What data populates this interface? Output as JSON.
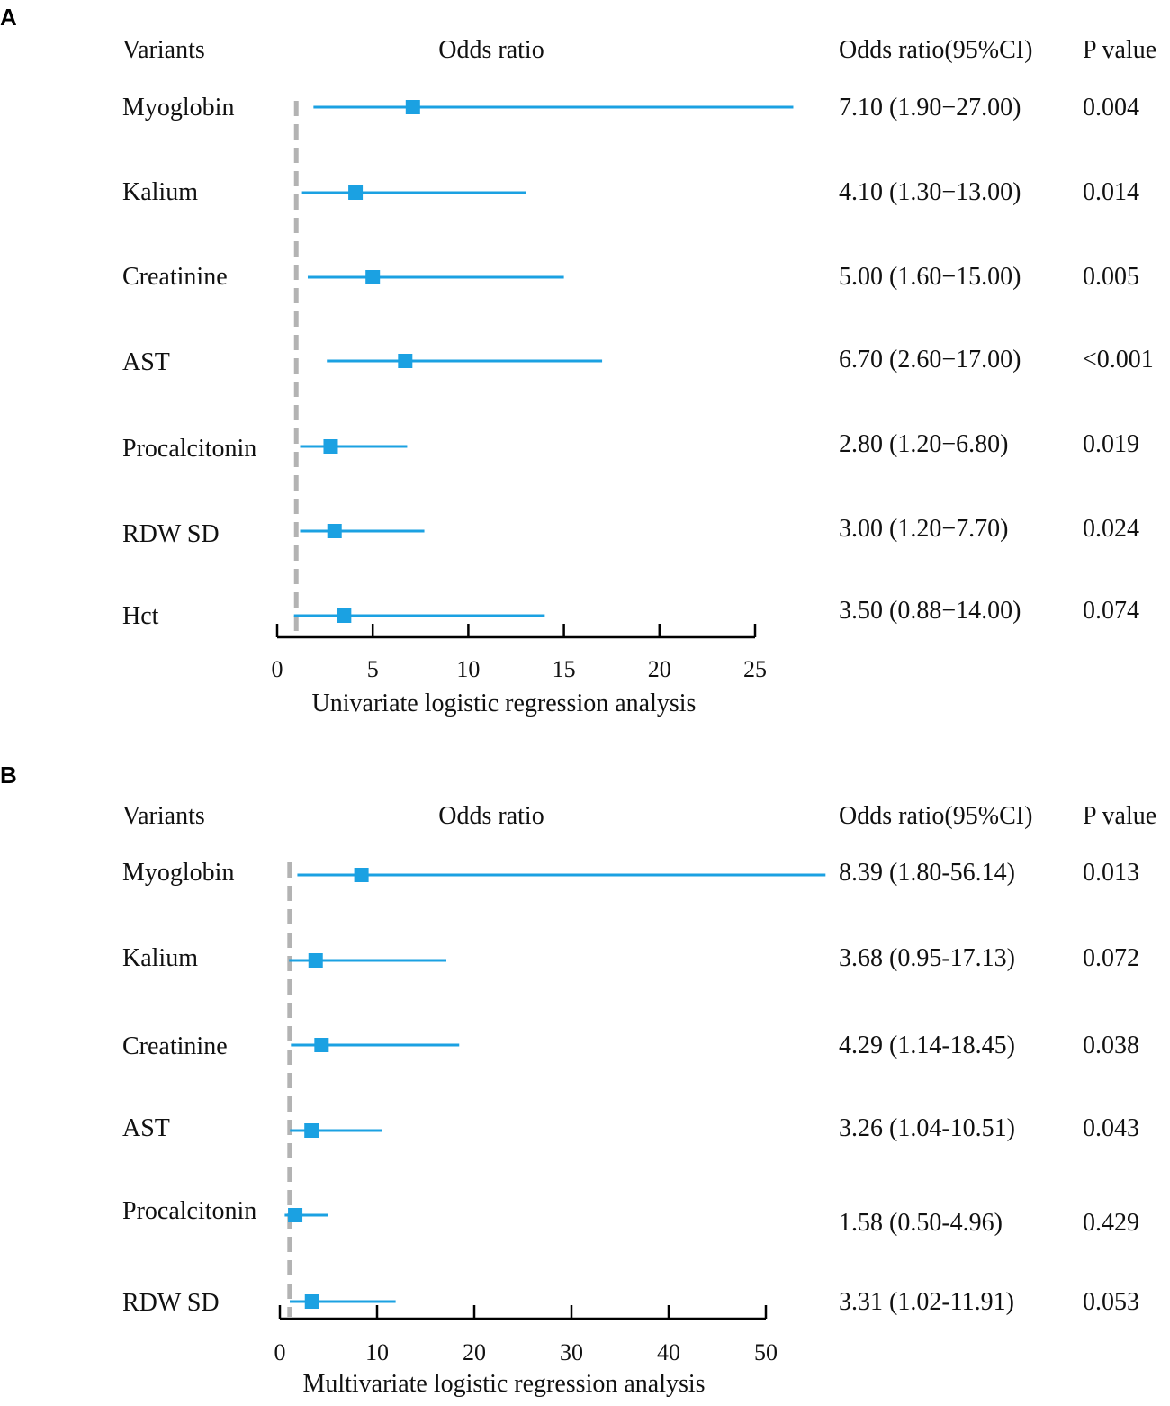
{
  "chart_data": [
    {
      "type": "forest",
      "panel_label": "A",
      "headers": {
        "variants": "Variants",
        "odds_ratio": "Odds ratio",
        "ci": "Odds ratio(95%CI)",
        "p": "P value"
      },
      "xlabel": "Univariate logistic regression analysis",
      "xlim": [
        0,
        25
      ],
      "xticks": [
        0,
        5,
        10,
        15,
        20,
        25
      ],
      "reference_line": 1,
      "colors": {
        "marker": "#1ba1e2",
        "reference": "#b3b3b3",
        "axis": "#000000"
      },
      "rows": [
        {
          "variant": "Myoglobin",
          "or": 7.1,
          "lower": 1.9,
          "upper": 27.0,
          "ci_text": "7.10 (1.90−27.00)",
          "p": "0.004"
        },
        {
          "variant": "Kalium",
          "or": 4.1,
          "lower": 1.3,
          "upper": 13.0,
          "ci_text": "4.10 (1.30−13.00)",
          "p": "0.014"
        },
        {
          "variant": "Creatinine",
          "or": 5.0,
          "lower": 1.6,
          "upper": 15.0,
          "ci_text": "5.00 (1.60−15.00)",
          "p": "0.005"
        },
        {
          "variant": "AST",
          "or": 6.7,
          "lower": 2.6,
          "upper": 17.0,
          "ci_text": "6.70 (2.60−17.00)",
          "p": "<0.001"
        },
        {
          "variant": "Procalcitonin",
          "or": 2.8,
          "lower": 1.2,
          "upper": 6.8,
          "ci_text": "2.80 (1.20−6.80)",
          "p": "0.019"
        },
        {
          "variant": "RDW SD",
          "or": 3.0,
          "lower": 1.2,
          "upper": 7.7,
          "ci_text": "3.00 (1.20−7.70)",
          "p": "0.024"
        },
        {
          "variant": "Hct",
          "or": 3.5,
          "lower": 0.88,
          "upper": 14.0,
          "ci_text": "3.50 (0.88−14.00)",
          "p": "0.074"
        }
      ]
    },
    {
      "type": "forest",
      "panel_label": "B",
      "headers": {
        "variants": "Variants",
        "odds_ratio": "Odds ratio",
        "ci": "Odds ratio(95%CI)",
        "p": "P value"
      },
      "xlabel": "Multivariate logistic regression analysis",
      "xlim": [
        0,
        50
      ],
      "xticks": [
        0,
        10,
        20,
        30,
        40,
        50
      ],
      "reference_line": 1,
      "colors": {
        "marker": "#1ba1e2",
        "reference": "#b3b3b3",
        "axis": "#000000"
      },
      "rows": [
        {
          "variant": "Myoglobin",
          "or": 8.39,
          "lower": 1.8,
          "upper": 56.14,
          "ci_text": "8.39 (1.80-56.14)",
          "p": "0.013"
        },
        {
          "variant": "Kalium",
          "or": 3.68,
          "lower": 0.95,
          "upper": 17.13,
          "ci_text": "3.68 (0.95-17.13)",
          "p": "0.072"
        },
        {
          "variant": "Creatinine",
          "or": 4.29,
          "lower": 1.14,
          "upper": 18.45,
          "ci_text": "4.29 (1.14-18.45)",
          "p": "0.038"
        },
        {
          "variant": "AST",
          "or": 3.26,
          "lower": 1.04,
          "upper": 10.51,
          "ci_text": "3.26 (1.04-10.51)",
          "p": "0.043"
        },
        {
          "variant": "Procalcitonin",
          "or": 1.58,
          "lower": 0.5,
          "upper": 4.96,
          "ci_text": "1.58 (0.50-4.96)",
          "p": "0.429"
        },
        {
          "variant": "RDW SD",
          "or": 3.31,
          "lower": 1.02,
          "upper": 11.91,
          "ci_text": "3.31 (1.02-11.91)",
          "p": "0.053"
        }
      ]
    }
  ]
}
